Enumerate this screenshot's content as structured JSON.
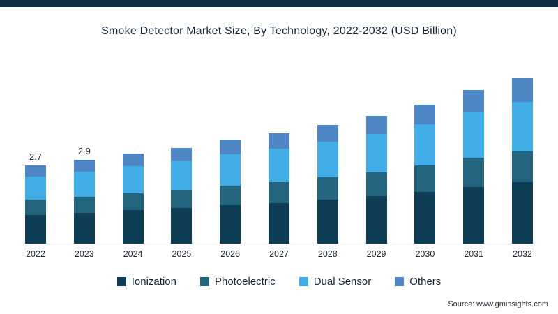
{
  "page": {
    "title": "Smoke Detector Market Size, By Technology, 2022-2032 (USD Billion)",
    "source": "Source: www.gminsights.com"
  },
  "colors": {
    "top_bar": "#0d2b40",
    "ionization": "#0d3d55",
    "photoelectric": "#23647f",
    "dual_sensor": "#41ade7",
    "others": "#4f86c5",
    "title_text": "#16263d",
    "axis_text": "#1d2733",
    "baseline": "#c9ced4"
  },
  "chart_data": {
    "type": "bar",
    "stacked": true,
    "title": "Smoke Detector Market Size, By Technology, 2022-2032 (USD Billion)",
    "xlabel": "",
    "ylabel": "USD Billion",
    "ylim": [
      0,
      6
    ],
    "grid": false,
    "legend_position": "bottom",
    "categories": [
      "2022",
      "2023",
      "2024",
      "2025",
      "2026",
      "2027",
      "2028",
      "2029",
      "2030",
      "2031",
      "2032"
    ],
    "totals": [
      2.7,
      2.9,
      3.1,
      3.3,
      3.6,
      3.8,
      4.1,
      4.4,
      4.8,
      5.3,
      5.7
    ],
    "data_labels": [
      "2.7",
      "2.9",
      "",
      "",
      "",
      "",
      "",
      "",
      "",
      "",
      ""
    ],
    "series": [
      {
        "name": "Ionization",
        "color_key": "ionization",
        "values": [
          1.0,
          1.07,
          1.15,
          1.22,
          1.33,
          1.41,
          1.52,
          1.63,
          1.78,
          1.96,
          2.11
        ]
      },
      {
        "name": "Photoelectric",
        "color_key": "photoelectric",
        "values": [
          0.51,
          0.55,
          0.59,
          0.63,
          0.68,
          0.72,
          0.78,
          0.84,
          0.91,
          1.01,
          1.08
        ]
      },
      {
        "name": "Dual Sensor",
        "color_key": "dual_sensor",
        "values": [
          0.81,
          0.87,
          0.93,
          0.99,
          1.08,
          1.14,
          1.23,
          1.32,
          1.44,
          1.59,
          1.71
        ]
      },
      {
        "name": "Others",
        "color_key": "others",
        "values": [
          0.38,
          0.41,
          0.43,
          0.46,
          0.51,
          0.53,
          0.57,
          0.61,
          0.67,
          0.74,
          0.8
        ]
      }
    ]
  },
  "legend": {
    "items": [
      {
        "label": "Ionization"
      },
      {
        "label": "Photoelectric"
      },
      {
        "label": "Dual Sensor"
      },
      {
        "label": "Others"
      }
    ]
  }
}
